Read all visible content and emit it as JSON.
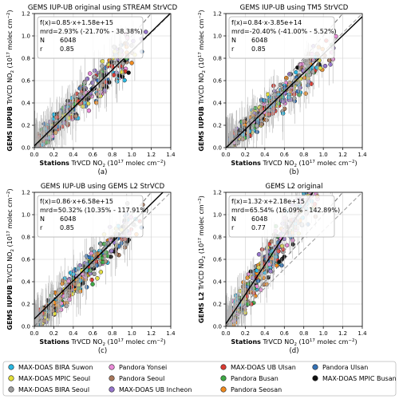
{
  "legend": {
    "items": [
      {
        "name": "MAX-DOAS BIRA Suwon",
        "color": "#29b6e0"
      },
      {
        "name": "MAX-DOAS MPIC Seoul",
        "color": "#e3df3a"
      },
      {
        "name": "MAX-DOAS BIRA Seoul",
        "color": "#9e9e9e"
      },
      {
        "name": "Pandora Yonsei",
        "color": "#e98bd7"
      },
      {
        "name": "Pandora Seoul",
        "color": "#a9795c"
      },
      {
        "name": "MAX-DOAS UB Incheon",
        "color": "#9575cd"
      },
      {
        "name": "MAX-DOAS UB Ulsan",
        "color": "#d93a32"
      },
      {
        "name": "Pandora Busan",
        "color": "#3ea845"
      },
      {
        "name": "Pandora Seosan",
        "color": "#f08a1e"
      },
      {
        "name": "Pandora Ulsan",
        "color": "#3572b5"
      },
      {
        "name": "MAX-DOAS MPIC Busan",
        "color": "#111111"
      }
    ]
  },
  "chart_data": [
    {
      "type": "scatter",
      "title": "GEMS IUP-UB original using STREAM StrVCD",
      "panel_label": "(a)",
      "ylabel_bold": "GEMS IUPUB",
      "ylabel_rest": "TrVCD NO",
      "ylabel_units": "(10",
      "ylabel_units_end": "molec cm",
      "xlabel_bold": "Stations",
      "xlabel_rest": "TrVCD NO",
      "xlabel_units": "(10",
      "xlabel_units_end": "molec cm",
      "unit_exponent": "17",
      "unit_power": "−2",
      "subscript": "2",
      "xlim": [
        0,
        1.4
      ],
      "ylim": [
        0,
        1.2
      ],
      "xticks": [
        "0.0",
        "0.2",
        "0.4",
        "0.6",
        "0.8",
        "1.0",
        "1.2",
        "1.4"
      ],
      "yticks": [
        "0.0",
        "0.2",
        "0.4",
        "0.6",
        "0.8",
        "1.0",
        "1.2"
      ],
      "fit": {
        "slope": 0.85,
        "intercept": 0.0158
      },
      "stats": [
        "f(x)=0.85·x+1.58e+15",
        "mrd=2.93% (-21.70% - 38.38%)",
        "N",
        "6048",
        "r",
        "0.85"
      ],
      "cloud": {
        "slope": 0.85,
        "spread": 0.11,
        "seed": 11
      }
    },
    {
      "type": "scatter",
      "title": "GEMS IUP-UB using TM5 StrVCD",
      "panel_label": "(b)",
      "ylabel_bold": "GEMS IUPUB",
      "ylabel_rest": "TrVCD NO",
      "ylabel_units": "(10",
      "ylabel_units_end": "molec cm",
      "xlabel_bold": "Stations",
      "xlabel_rest": "TrVCD NO",
      "xlabel_units": "(10",
      "xlabel_units_end": "molec cm",
      "unit_exponent": "17",
      "unit_power": "−2",
      "subscript": "2",
      "xlim": [
        0,
        1.4
      ],
      "ylim": [
        0,
        1.2
      ],
      "xticks": [
        "0.0",
        "0.2",
        "0.4",
        "0.6",
        "0.8",
        "1.0",
        "1.2",
        "1.4"
      ],
      "yticks": [
        "0.0",
        "0.2",
        "0.4",
        "0.6",
        "0.8",
        "1.0",
        "1.2"
      ],
      "fit": {
        "slope": 0.84,
        "intercept": -0.00385
      },
      "stats": [
        "f(x)=0.84·x-3.85e+14",
        "mrd=-20.40% (-41.00% - 5.52%)",
        "N",
        "6048",
        "r",
        "0.85"
      ],
      "cloud": {
        "slope": 0.78,
        "spread": 0.1,
        "seed": 23
      }
    },
    {
      "type": "scatter",
      "title": "GEMS IUP-UB using GEMS L2 StrVCD",
      "panel_label": "(c)",
      "ylabel_bold": "GEMS IUPUB",
      "ylabel_rest": "TrVCD NO",
      "ylabel_units": "(10",
      "ylabel_units_end": "molec cm",
      "xlabel_bold": "Stations",
      "xlabel_rest": "TrVCD NO",
      "xlabel_units": "(10",
      "xlabel_units_end": "molec cm",
      "unit_exponent": "17",
      "unit_power": "−2",
      "subscript": "2",
      "xlim": [
        0,
        1.4
      ],
      "ylim": [
        0,
        1.2
      ],
      "xticks": [
        "0.0",
        "0.2",
        "0.4",
        "0.6",
        "0.8",
        "1.0",
        "1.2",
        "1.4"
      ],
      "yticks": [
        "0.0",
        "0.2",
        "0.4",
        "0.6",
        "0.8",
        "1.0",
        "1.2"
      ],
      "fit": {
        "slope": 0.86,
        "intercept": 0.0658
      },
      "stats": [
        "f(x)=0.86·x+6.58e+15",
        "mrd=50.32% (10.35% - 117.91%)",
        "N",
        "6048",
        "r",
        "0.85"
      ],
      "cloud": {
        "slope": 0.9,
        "spread": 0.11,
        "seed": 37
      }
    },
    {
      "type": "scatter",
      "title": "GEMS L2 original",
      "panel_label": "(d)",
      "ylabel_bold": "GEMS L2",
      "ylabel_rest": "TrVCD NO",
      "ylabel_units": "(10",
      "ylabel_units_end": "molec cm",
      "xlabel_bold": "Stations",
      "xlabel_rest": "TrVCD NO",
      "xlabel_units": "(10",
      "xlabel_units_end": "molec cm",
      "unit_exponent": "17",
      "unit_power": "−2",
      "subscript": "2",
      "xlim": [
        0,
        1.4
      ],
      "ylim": [
        0,
        1.2
      ],
      "xticks": [
        "0.0",
        "0.2",
        "0.4",
        "0.6",
        "0.8",
        "1.0",
        "1.2",
        "1.4"
      ],
      "yticks": [
        "0.0",
        "0.2",
        "0.4",
        "0.6",
        "0.8",
        "1.0",
        "1.2"
      ],
      "fit": {
        "slope": 1.32,
        "intercept": 0.0218
      },
      "stats": [
        "f(x)=1.32·x+2.18e+15",
        "mrd=65.54% (16.09% - 142.89%)",
        "N",
        "6048",
        "r",
        "0.77"
      ],
      "cloud": {
        "slope": 1.3,
        "spread": 0.16,
        "seed": 53
      }
    }
  ]
}
